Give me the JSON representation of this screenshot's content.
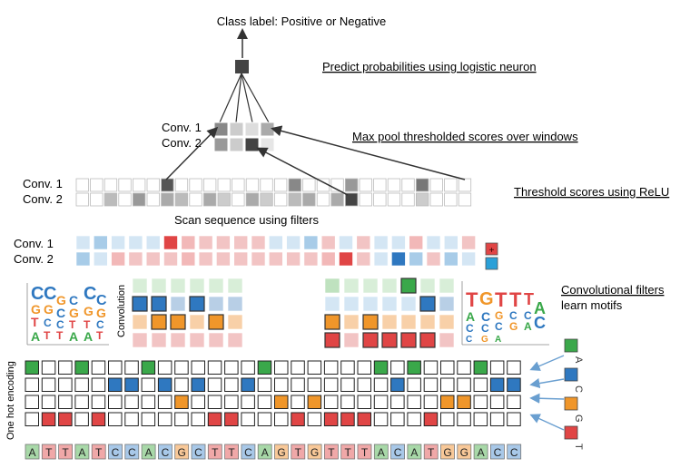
{
  "title": "Class label: Positive or Negative",
  "annotations": {
    "predict": "Predict probabilities using logistic neuron",
    "maxpool": "Max pool thresholded scores over windows",
    "relu": "Threshold scores using ReLU",
    "scan": "Scan sequence using filters",
    "filters_line1": "Convolutional filters",
    "filters_line2": "learn motifs"
  },
  "labels": {
    "conv1": "Conv. 1",
    "conv2": "Conv. 2",
    "convolution": "Convolution",
    "one_hot": "One hot encoding",
    "plus": "+",
    "minus": "-"
  },
  "legend": [
    "A",
    "C",
    "G",
    "T"
  ],
  "colors": {
    "A": "#3aa84a",
    "C": "#2f78c0",
    "G": "#f0962a",
    "T": "#e04545",
    "A_light": "#a8d8a8",
    "C_light": "#a8c8e8",
    "G_light": "#f8c898",
    "T_light": "#f0a8a8",
    "arrow": "#6a9fd0"
  },
  "sequence": [
    "A",
    "T",
    "T",
    "A",
    "T",
    "C",
    "C",
    "A",
    "C",
    "G",
    "C",
    "T",
    "T",
    "C",
    "A",
    "G",
    "T",
    "G",
    "T",
    "T",
    "T",
    "A",
    "C",
    "A",
    "T",
    "G",
    "G",
    "A",
    "C",
    "C"
  ],
  "logo_left": "CCGCCC",
  "logo_right": "TGTTTAC"
}
